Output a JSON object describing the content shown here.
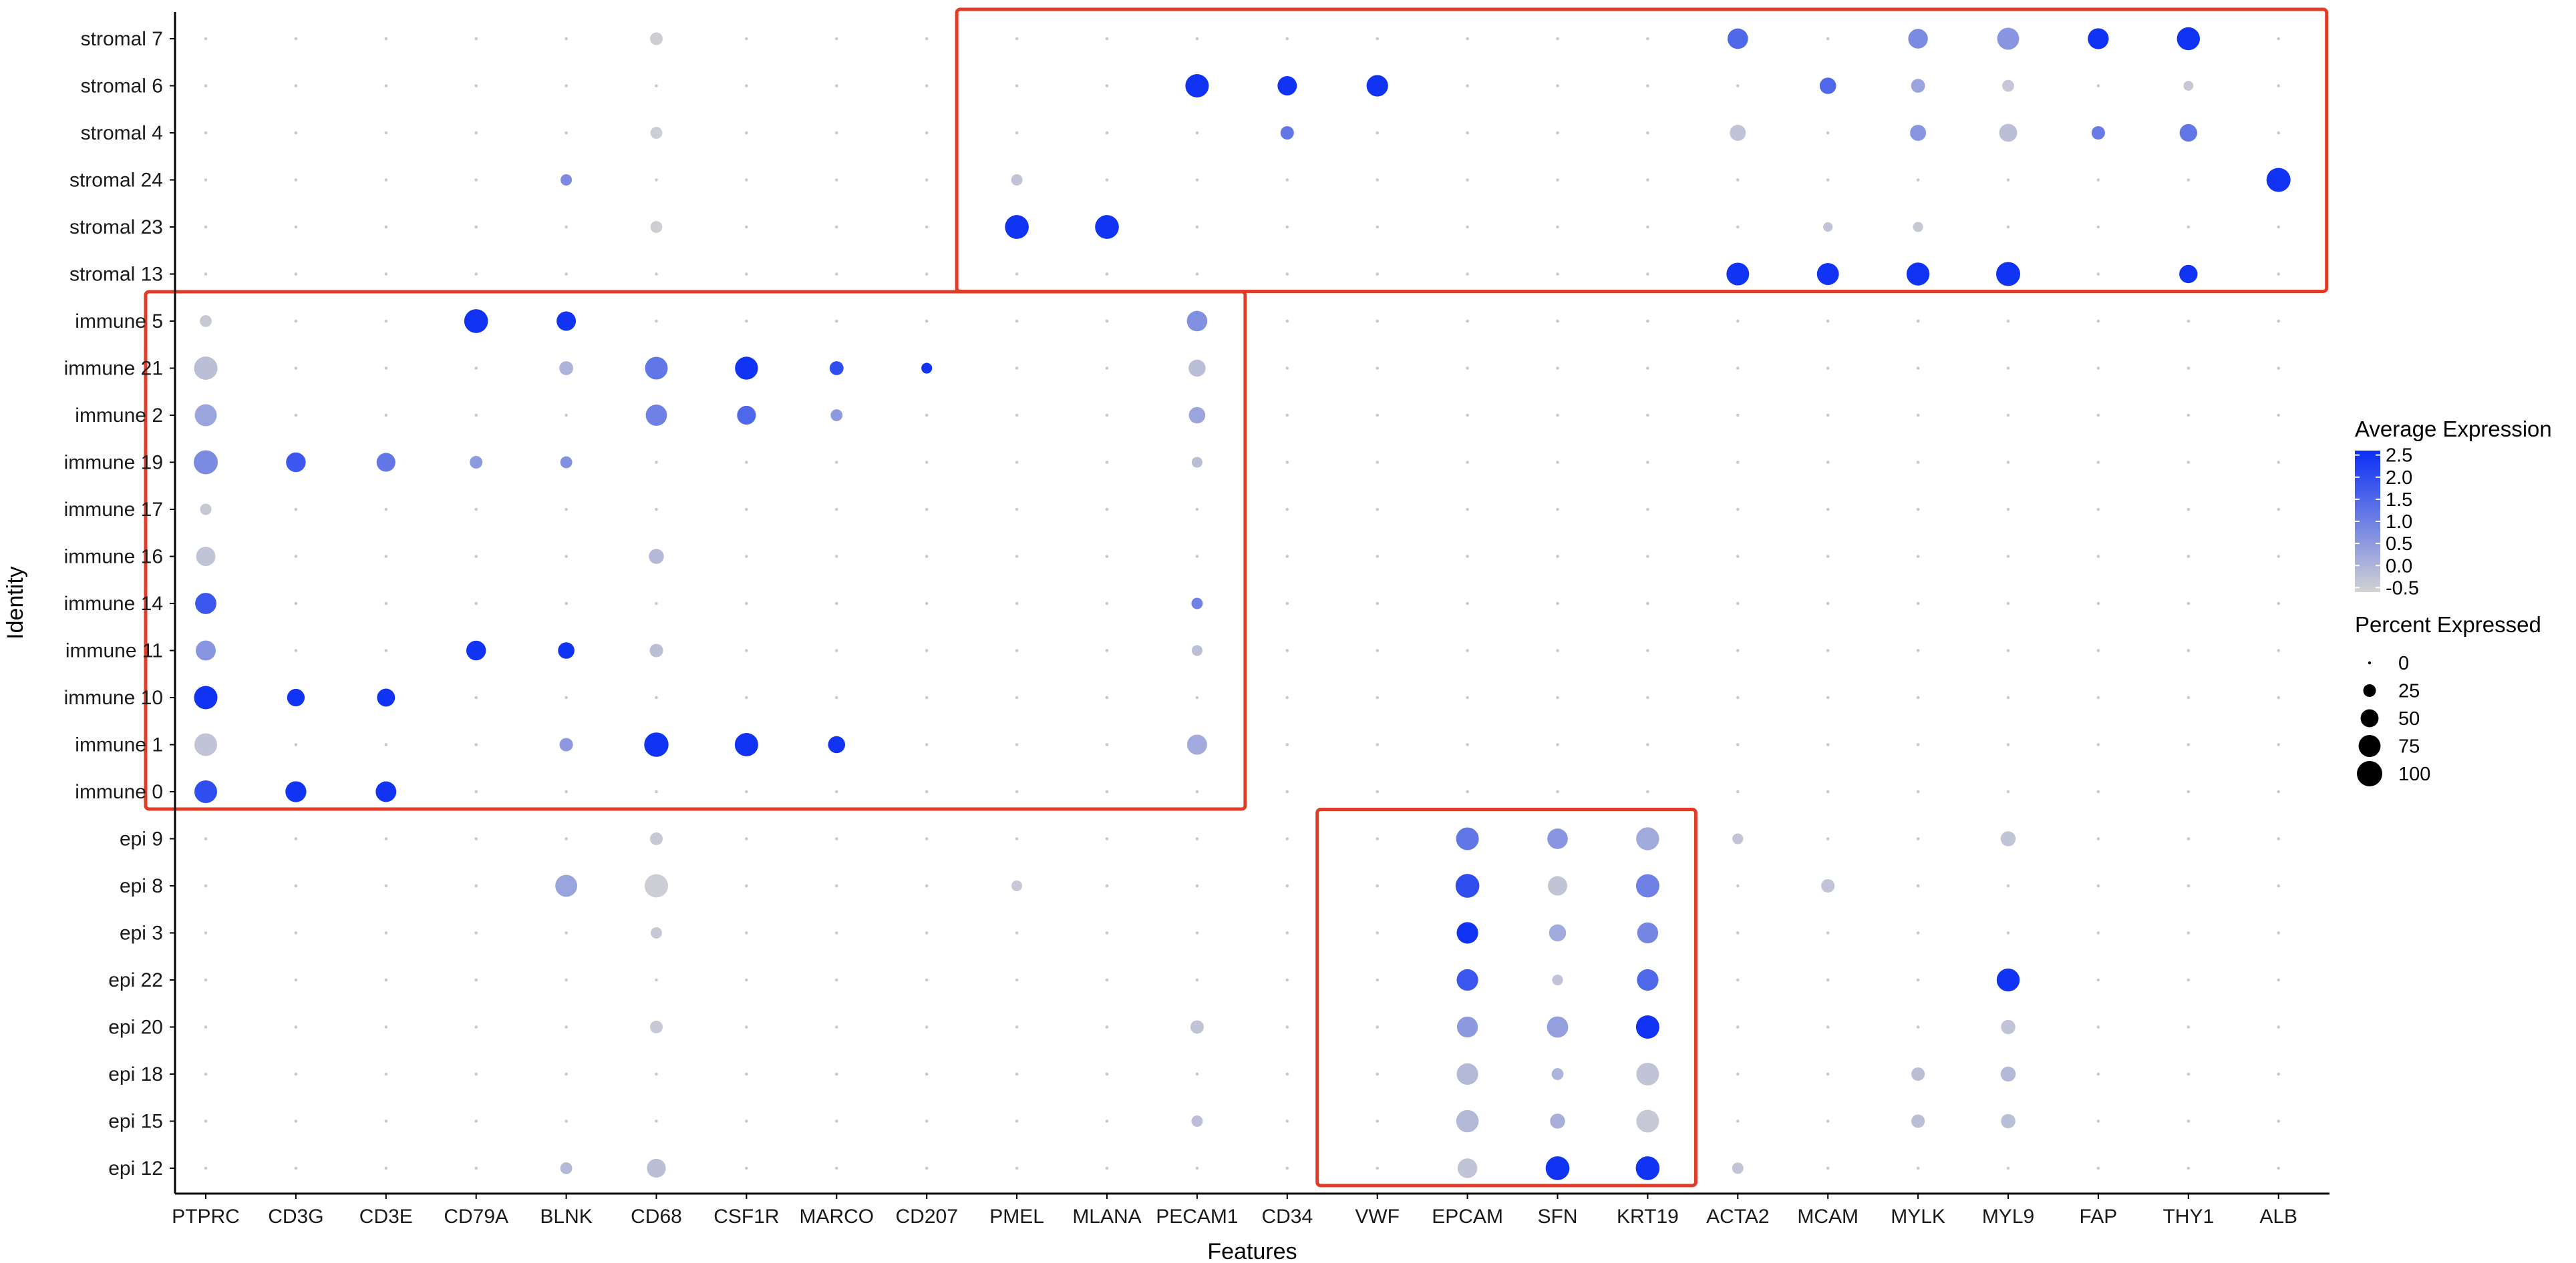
{
  "chart_data": {
    "type": "dotplot",
    "xlabel": "Features",
    "ylabel": "Identity",
    "features": [
      "PTPRC",
      "CD3G",
      "CD3E",
      "CD79A",
      "BLNK",
      "CD68",
      "CSF1R",
      "MARCO",
      "CD207",
      "PMEL",
      "MLANA",
      "PECAM1",
      "CD34",
      "VWF",
      "EPCAM",
      "SFN",
      "KRT19",
      "ACTA2",
      "MCAM",
      "MYLK",
      "MYL9",
      "FAP",
      "THY1",
      "ALB"
    ],
    "identities": [
      "stromal 7",
      "stromal 6",
      "stromal 4",
      "stromal 24",
      "stromal 23",
      "stromal 13",
      "immune 5",
      "immune 21",
      "immune 2",
      "immune 19",
      "immune 17",
      "immune 16",
      "immune 14",
      "immune 11",
      "immune 10",
      "immune 1",
      "immune 0",
      "epi 9",
      "epi 8",
      "epi 3",
      "epi 22",
      "epi 20",
      "epi 18",
      "epi 15",
      "epi 12"
    ],
    "color_scale": {
      "title": "Average Expression",
      "low_color": "#d3d3d3",
      "high_color": "#0a2ef5",
      "min": -0.6,
      "max": 2.6,
      "ticks": [
        "2.5",
        "2.0",
        "1.5",
        "1.0",
        "0.5",
        "0.0",
        "-0.5"
      ]
    },
    "size_scale": {
      "title": "Percent Expressed",
      "ticks": [
        0,
        25,
        50,
        75,
        100
      ],
      "tick_labels": [
        "0",
        "25",
        "50",
        "75",
        "100"
      ]
    },
    "highlight_color": "#e03c28",
    "highlight_boxes": [
      {
        "from_feature": "PMEL",
        "to_feature": "ALB",
        "from_identity": "stromal 7",
        "to_identity": "stromal 13"
      },
      {
        "from_feature": "PTPRC",
        "to_feature": "PECAM1",
        "from_identity": "immune 5",
        "to_identity": "immune 0"
      },
      {
        "from_feature": "VWF",
        "to_feature": "KRT19",
        "from_identity": "epi 9",
        "to_identity": "epi 12"
      }
    ],
    "points": [
      {
        "id": "stromal 7",
        "f": "CD68",
        "pct": 25,
        "avg": -0.5
      },
      {
        "id": "stromal 7",
        "f": "ACTA2",
        "pct": 65,
        "avg": 1.5
      },
      {
        "id": "stromal 7",
        "f": "MYLK",
        "pct": 60,
        "avg": 0.8
      },
      {
        "id": "stromal 7",
        "f": "MYL9",
        "pct": 75,
        "avg": 0.6
      },
      {
        "id": "stromal 7",
        "f": "FAP",
        "pct": 68,
        "avg": 2.5
      },
      {
        "id": "stromal 7",
        "f": "THY1",
        "pct": 82,
        "avg": 2.5
      },
      {
        "id": "stromal 6",
        "f": "PECAM1",
        "pct": 85,
        "avg": 2.5
      },
      {
        "id": "stromal 6",
        "f": "CD34",
        "pct": 58,
        "avg": 2.5
      },
      {
        "id": "stromal 6",
        "f": "VWF",
        "pct": 72,
        "avg": 2.5
      },
      {
        "id": "stromal 6",
        "f": "MCAM",
        "pct": 42,
        "avg": 1.5
      },
      {
        "id": "stromal 6",
        "f": "MYLK",
        "pct": 30,
        "avg": 0.3
      },
      {
        "id": "stromal 6",
        "f": "MYL9",
        "pct": 22,
        "avg": -0.4
      },
      {
        "id": "stromal 6",
        "f": "THY1",
        "pct": 15,
        "avg": -0.4
      },
      {
        "id": "stromal 4",
        "f": "CD68",
        "pct": 22,
        "avg": -0.5
      },
      {
        "id": "stromal 4",
        "f": "CD34",
        "pct": 28,
        "avg": 1.2
      },
      {
        "id": "stromal 4",
        "f": "ACTA2",
        "pct": 40,
        "avg": -0.3
      },
      {
        "id": "stromal 4",
        "f": "MYLK",
        "pct": 40,
        "avg": 0.6
      },
      {
        "id": "stromal 4",
        "f": "MYL9",
        "pct": 50,
        "avg": -0.2
      },
      {
        "id": "stromal 4",
        "f": "FAP",
        "pct": 28,
        "avg": 1.1
      },
      {
        "id": "stromal 4",
        "f": "THY1",
        "pct": 48,
        "avg": 1.2
      },
      {
        "id": "stromal 24",
        "f": "BLNK",
        "pct": 20,
        "avg": 0.8
      },
      {
        "id": "stromal 24",
        "f": "PMEL",
        "pct": 20,
        "avg": -0.3
      },
      {
        "id": "stromal 24",
        "f": "ALB",
        "pct": 90,
        "avg": 2.5
      },
      {
        "id": "stromal 23",
        "f": "CD68",
        "pct": 22,
        "avg": -0.5
      },
      {
        "id": "stromal 23",
        "f": "PMEL",
        "pct": 88,
        "avg": 2.5
      },
      {
        "id": "stromal 23",
        "f": "MLANA",
        "pct": 88,
        "avg": 2.5
      },
      {
        "id": "stromal 23",
        "f": "MCAM",
        "pct": 14,
        "avg": -0.3
      },
      {
        "id": "stromal 23",
        "f": "MYLK",
        "pct": 16,
        "avg": -0.4
      },
      {
        "id": "stromal 13",
        "f": "ACTA2",
        "pct": 80,
        "avg": 2.5
      },
      {
        "id": "stromal 13",
        "f": "MCAM",
        "pct": 75,
        "avg": 2.5
      },
      {
        "id": "stromal 13",
        "f": "MYLK",
        "pct": 82,
        "avg": 2.5
      },
      {
        "id": "stromal 13",
        "f": "MYL9",
        "pct": 90,
        "avg": 2.5
      },
      {
        "id": "stromal 13",
        "f": "THY1",
        "pct": 52,
        "avg": 2.5
      },
      {
        "id": "immune 5",
        "f": "PTPRC",
        "pct": 22,
        "avg": -0.4
      },
      {
        "id": "immune 5",
        "f": "CD79A",
        "pct": 88,
        "avg": 2.5
      },
      {
        "id": "immune 5",
        "f": "BLNK",
        "pct": 58,
        "avg": 2.5
      },
      {
        "id": "immune 5",
        "f": "PECAM1",
        "pct": 65,
        "avg": 0.7
      },
      {
        "id": "immune 21",
        "f": "PTPRC",
        "pct": 85,
        "avg": -0.2
      },
      {
        "id": "immune 21",
        "f": "BLNK",
        "pct": 30,
        "avg": 0.0
      },
      {
        "id": "immune 21",
        "f": "CD68",
        "pct": 80,
        "avg": 1.2
      },
      {
        "id": "immune 21",
        "f": "CSF1R",
        "pct": 82,
        "avg": 2.5
      },
      {
        "id": "immune 21",
        "f": "MARCO",
        "pct": 30,
        "avg": 2.0
      },
      {
        "id": "immune 21",
        "f": "CD207",
        "pct": 18,
        "avg": 2.5
      },
      {
        "id": "immune 21",
        "f": "PECAM1",
        "pct": 45,
        "avg": -0.2
      },
      {
        "id": "immune 2",
        "f": "PTPRC",
        "pct": 75,
        "avg": 0.3
      },
      {
        "id": "immune 2",
        "f": "CD68",
        "pct": 70,
        "avg": 1.0
      },
      {
        "id": "immune 2",
        "f": "CSF1R",
        "pct": 55,
        "avg": 1.5
      },
      {
        "id": "immune 2",
        "f": "MARCO",
        "pct": 22,
        "avg": 0.5
      },
      {
        "id": "immune 2",
        "f": "PECAM1",
        "pct": 42,
        "avg": 0.3
      },
      {
        "id": "immune 19",
        "f": "PTPRC",
        "pct": 90,
        "avg": 0.8
      },
      {
        "id": "immune 19",
        "f": "CD3G",
        "pct": 60,
        "avg": 1.8
      },
      {
        "id": "immune 19",
        "f": "CD3E",
        "pct": 55,
        "avg": 1.2
      },
      {
        "id": "immune 19",
        "f": "CD79A",
        "pct": 25,
        "avg": 0.5
      },
      {
        "id": "immune 19",
        "f": "BLNK",
        "pct": 22,
        "avg": 0.7
      },
      {
        "id": "immune 19",
        "f": "PECAM1",
        "pct": 18,
        "avg": -0.2
      },
      {
        "id": "immune 17",
        "f": "PTPRC",
        "pct": 20,
        "avg": -0.4
      },
      {
        "id": "immune 16",
        "f": "PTPRC",
        "pct": 58,
        "avg": -0.3
      },
      {
        "id": "immune 16",
        "f": "CD68",
        "pct": 35,
        "avg": -0.1
      },
      {
        "id": "immune 14",
        "f": "PTPRC",
        "pct": 70,
        "avg": 1.8
      },
      {
        "id": "immune 14",
        "f": "PECAM1",
        "pct": 20,
        "avg": 1.0
      },
      {
        "id": "immune 11",
        "f": "PTPRC",
        "pct": 62,
        "avg": 0.6
      },
      {
        "id": "immune 11",
        "f": "CD79A",
        "pct": 60,
        "avg": 2.5
      },
      {
        "id": "immune 11",
        "f": "BLNK",
        "pct": 42,
        "avg": 2.5
      },
      {
        "id": "immune 11",
        "f": "CD68",
        "pct": 28,
        "avg": -0.2
      },
      {
        "id": "immune 11",
        "f": "PECAM1",
        "pct": 18,
        "avg": -0.2
      },
      {
        "id": "immune 10",
        "f": "PTPRC",
        "pct": 85,
        "avg": 2.5
      },
      {
        "id": "immune 10",
        "f": "CD3G",
        "pct": 48,
        "avg": 2.5
      },
      {
        "id": "immune 10",
        "f": "CD3E",
        "pct": 50,
        "avg": 2.5
      },
      {
        "id": "immune 1",
        "f": "PTPRC",
        "pct": 80,
        "avg": -0.3
      },
      {
        "id": "immune 1",
        "f": "BLNK",
        "pct": 28,
        "avg": 0.5
      },
      {
        "id": "immune 1",
        "f": "CD68",
        "pct": 92,
        "avg": 2.5
      },
      {
        "id": "immune 1",
        "f": "CSF1R",
        "pct": 85,
        "avg": 2.5
      },
      {
        "id": "immune 1",
        "f": "MARCO",
        "pct": 45,
        "avg": 2.5
      },
      {
        "id": "immune 1",
        "f": "PECAM1",
        "pct": 62,
        "avg": 0.2
      },
      {
        "id": "immune 0",
        "f": "PTPRC",
        "pct": 80,
        "avg": 2.0
      },
      {
        "id": "immune 0",
        "f": "CD3G",
        "pct": 68,
        "avg": 2.5
      },
      {
        "id": "immune 0",
        "f": "CD3E",
        "pct": 66,
        "avg": 2.5
      },
      {
        "id": "epi 9",
        "f": "CD68",
        "pct": 25,
        "avg": -0.4
      },
      {
        "id": "epi 9",
        "f": "EPCAM",
        "pct": 80,
        "avg": 1.2
      },
      {
        "id": "epi 9",
        "f": "SFN",
        "pct": 65,
        "avg": 0.6
      },
      {
        "id": "epi 9",
        "f": "KRT19",
        "pct": 82,
        "avg": 0.2
      },
      {
        "id": "epi 9",
        "f": "ACTA2",
        "pct": 18,
        "avg": -0.3
      },
      {
        "id": "epi 9",
        "f": "MYL9",
        "pct": 35,
        "avg": -0.3
      },
      {
        "id": "epi 8",
        "f": "BLNK",
        "pct": 75,
        "avg": 0.3
      },
      {
        "id": "epi 8",
        "f": "CD68",
        "pct": 85,
        "avg": -0.5
      },
      {
        "id": "epi 8",
        "f": "PMEL",
        "pct": 18,
        "avg": -0.4
      },
      {
        "id": "epi 8",
        "f": "EPCAM",
        "pct": 88,
        "avg": 2.0
      },
      {
        "id": "epi 8",
        "f": "SFN",
        "pct": 58,
        "avg": -0.3
      },
      {
        "id": "epi 8",
        "f": "KRT19",
        "pct": 85,
        "avg": 1.0
      },
      {
        "id": "epi 8",
        "f": "MCAM",
        "pct": 28,
        "avg": -0.3
      },
      {
        "id": "epi 3",
        "f": "CD68",
        "pct": 20,
        "avg": -0.4
      },
      {
        "id": "epi 3",
        "f": "EPCAM",
        "pct": 72,
        "avg": 2.5
      },
      {
        "id": "epi 3",
        "f": "SFN",
        "pct": 45,
        "avg": 0.2
      },
      {
        "id": "epi 3",
        "f": "KRT19",
        "pct": 68,
        "avg": 0.9
      },
      {
        "id": "epi 22",
        "f": "EPCAM",
        "pct": 72,
        "avg": 1.8
      },
      {
        "id": "epi 22",
        "f": "SFN",
        "pct": 18,
        "avg": -0.3
      },
      {
        "id": "epi 22",
        "f": "KRT19",
        "pct": 72,
        "avg": 1.5
      },
      {
        "id": "epi 22",
        "f": "MYL9",
        "pct": 82,
        "avg": 2.5
      },
      {
        "id": "epi 20",
        "f": "CD68",
        "pct": 25,
        "avg": -0.4
      },
      {
        "id": "epi 20",
        "f": "PECAM1",
        "pct": 28,
        "avg": -0.3
      },
      {
        "id": "epi 20",
        "f": "EPCAM",
        "pct": 68,
        "avg": 0.5
      },
      {
        "id": "epi 20",
        "f": "SFN",
        "pct": 70,
        "avg": 0.4
      },
      {
        "id": "epi 20",
        "f": "KRT19",
        "pct": 85,
        "avg": 2.5
      },
      {
        "id": "epi 20",
        "f": "MYL9",
        "pct": 32,
        "avg": -0.3
      },
      {
        "id": "epi 18",
        "f": "EPCAM",
        "pct": 72,
        "avg": -0.1
      },
      {
        "id": "epi 18",
        "f": "SFN",
        "pct": 22,
        "avg": 0.0
      },
      {
        "id": "epi 18",
        "f": "KRT19",
        "pct": 80,
        "avg": -0.3
      },
      {
        "id": "epi 18",
        "f": "MYLK",
        "pct": 28,
        "avg": -0.2
      },
      {
        "id": "epi 18",
        "f": "MYL9",
        "pct": 35,
        "avg": -0.1
      },
      {
        "id": "epi 15",
        "f": "PECAM1",
        "pct": 20,
        "avg": -0.2
      },
      {
        "id": "epi 15",
        "f": "EPCAM",
        "pct": 78,
        "avg": -0.1
      },
      {
        "id": "epi 15",
        "f": "SFN",
        "pct": 35,
        "avg": 0.1
      },
      {
        "id": "epi 15",
        "f": "KRT19",
        "pct": 80,
        "avg": -0.4
      },
      {
        "id": "epi 15",
        "f": "MYLK",
        "pct": 28,
        "avg": -0.2
      },
      {
        "id": "epi 15",
        "f": "MYL9",
        "pct": 32,
        "avg": -0.2
      },
      {
        "id": "epi 12",
        "f": "BLNK",
        "pct": 22,
        "avg": -0.1
      },
      {
        "id": "epi 12",
        "f": "CD68",
        "pct": 55,
        "avg": -0.2
      },
      {
        "id": "epi 12",
        "f": "EPCAM",
        "pct": 60,
        "avg": -0.3
      },
      {
        "id": "epi 12",
        "f": "SFN",
        "pct": 88,
        "avg": 2.5
      },
      {
        "id": "epi 12",
        "f": "KRT19",
        "pct": 88,
        "avg": 2.5
      },
      {
        "id": "epi 12",
        "f": "ACTA2",
        "pct": 20,
        "avg": -0.3
      }
    ]
  }
}
